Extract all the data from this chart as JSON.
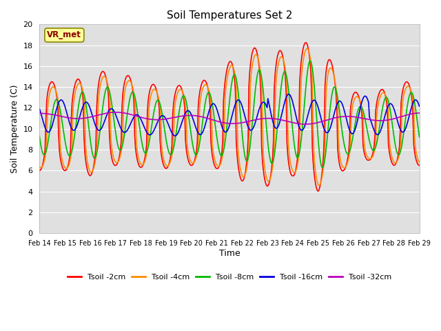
{
  "title": "Soil Temperatures Set 2",
  "xlabel": "Time",
  "ylabel": "Soil Temperature (C)",
  "ylim": [
    0,
    20
  ],
  "yticks": [
    0,
    2,
    4,
    6,
    8,
    10,
    12,
    14,
    16,
    18,
    20
  ],
  "bg_color": "#e0e0e0",
  "fig_color": "#ffffff",
  "annotation_text": "VR_met",
  "annotation_box_color": "#ffff99",
  "annotation_text_color": "#8B0000",
  "series": {
    "Tsoil -2cm": {
      "color": "#ff0000",
      "lw": 1.2
    },
    "Tsoil -4cm": {
      "color": "#ff8c00",
      "lw": 1.2
    },
    "Tsoil -8cm": {
      "color": "#00bb00",
      "lw": 1.2
    },
    "Tsoil -16cm": {
      "color": "#0000dd",
      "lw": 1.2
    },
    "Tsoil -32cm": {
      "color": "#bb00bb",
      "lw": 1.2
    }
  },
  "x_tick_labels": [
    "Feb 14",
    "Feb 15",
    "Feb 16",
    "Feb 17",
    "Feb 18",
    "Feb 19",
    "Feb 20",
    "Feb 21",
    "Feb 22",
    "Feb 23",
    "Feb 24",
    "Feb 25",
    "Feb 26",
    "Feb 27",
    "Feb 28",
    "Feb 29"
  ],
  "num_points": 480
}
